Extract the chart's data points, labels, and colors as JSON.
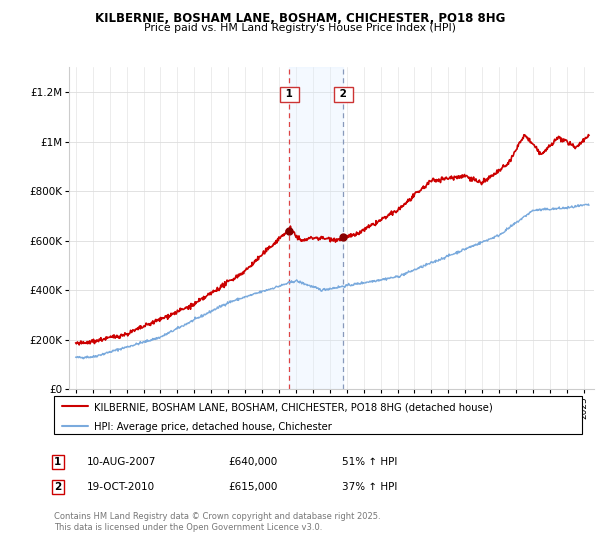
{
  "title": "KILBERNIE, BOSHAM LANE, BOSHAM, CHICHESTER, PO18 8HG",
  "subtitle": "Price paid vs. HM Land Registry's House Price Index (HPI)",
  "legend_line1": "KILBERNIE, BOSHAM LANE, BOSHAM, CHICHESTER, PO18 8HG (detached house)",
  "legend_line2": "HPI: Average price, detached house, Chichester",
  "sale1_label": "1",
  "sale1_date": "10-AUG-2007",
  "sale1_price": "£640,000",
  "sale1_hpi": "51% ↑ HPI",
  "sale2_label": "2",
  "sale2_date": "19-OCT-2010",
  "sale2_price": "£615,000",
  "sale2_hpi": "37% ↑ HPI",
  "footer": "Contains HM Land Registry data © Crown copyright and database right 2025.\nThis data is licensed under the Open Government Licence v3.0.",
  "red_color": "#cc0000",
  "blue_color": "#7aaadd",
  "sale1_year": 2007.62,
  "sale2_year": 2010.8,
  "shading_color": "#ddeeff",
  "ylim_max": 1300000,
  "ytick_labels": [
    "£0",
    "£200K",
    "£400K",
    "£600K",
    "£800K",
    "£1M",
    "£1.2M"
  ],
  "ytick_values": [
    0,
    200000,
    400000,
    600000,
    800000,
    1000000,
    1200000
  ],
  "badge_color": "#cc3333"
}
